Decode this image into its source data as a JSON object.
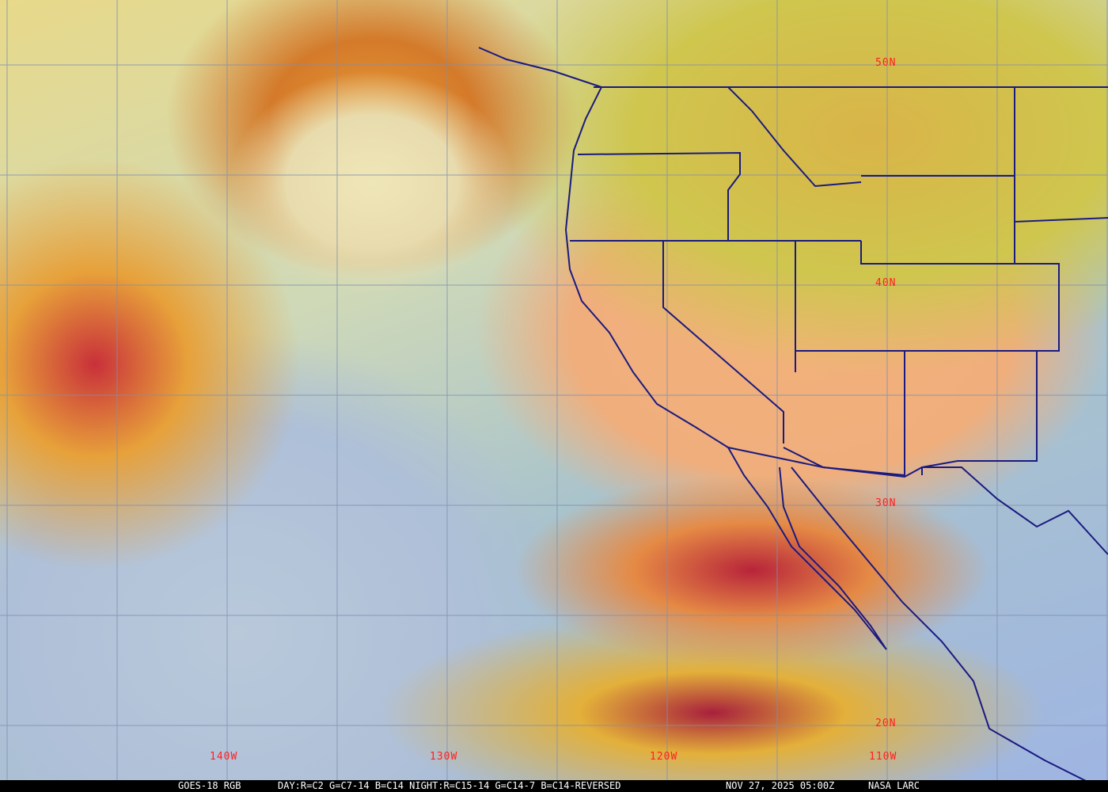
{
  "map": {
    "latitude_labels": [
      "50N",
      "40N",
      "30N",
      "20N"
    ],
    "longitude_labels": [
      "140W",
      "130W",
      "120W",
      "110W"
    ],
    "colors": {
      "grid": "#7f8fb0",
      "borders": "#1a1a80",
      "labels": "#ff2020"
    }
  },
  "caption": {
    "product": "GOES-18 RGB",
    "recipe": "DAY:R=C2 G=C7-14 B=C14 NIGHT:R=C15-14 G=C14-7 B=C14-REVERSED",
    "timestamp": "NOV 27, 2025 05:00Z",
    "source": "NASA LARC"
  }
}
